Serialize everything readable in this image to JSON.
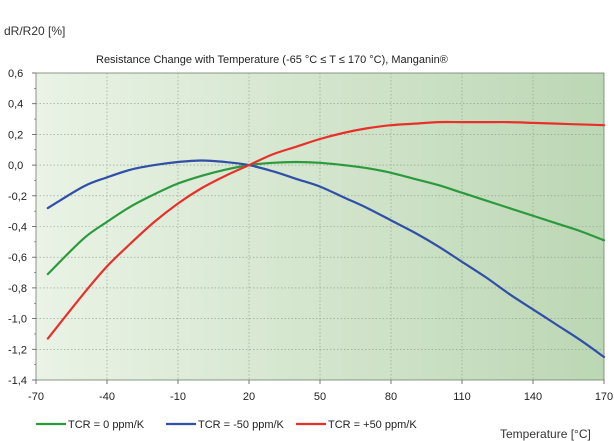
{
  "chart_data": {
    "type": "line",
    "title": "Resistance Change with Temperature (-65 °C ≤ T ≤ 170 °C), Manganin®",
    "ylabel": "dR/R20 [%]",
    "xlabel": "Temperature [°C]",
    "xlim": [
      -70,
      170
    ],
    "ylim": [
      -1.4,
      0.6
    ],
    "x_ticks": [
      -70,
      -40,
      -10,
      20,
      50,
      80,
      110,
      140,
      170
    ],
    "x_tick_labels": [
      "-70",
      "-40",
      "-10",
      "20",
      "50",
      "80",
      "110",
      "140",
      "170"
    ],
    "y_ticks": [
      0.6,
      0.4,
      0.2,
      0.0,
      -0.2,
      -0.4,
      -0.6,
      -0.8,
      -1.0,
      -1.2,
      -1.4
    ],
    "y_tick_labels": [
      "0,6",
      "0,4",
      "0,2",
      "0,0",
      "-0,2",
      "-0,4",
      "-0,6",
      "-0,8",
      "-1,0",
      "-1,2",
      "-1,4"
    ],
    "grid": true,
    "legend_position": "bottom-left",
    "series": [
      {
        "name": "TCR = 0 ppm/K",
        "color": "#2a9a3c",
        "x": [
          -65,
          -50,
          -40,
          -30,
          -20,
          -10,
          0,
          10,
          20,
          30,
          40,
          50,
          60,
          70,
          80,
          90,
          100,
          110,
          120,
          130,
          140,
          150,
          160,
          170
        ],
        "y": [
          -0.71,
          -0.48,
          -0.37,
          -0.27,
          -0.19,
          -0.12,
          -0.07,
          -0.03,
          0.0,
          0.015,
          0.02,
          0.015,
          0.0,
          -0.02,
          -0.05,
          -0.09,
          -0.13,
          -0.18,
          -0.23,
          -0.28,
          -0.33,
          -0.38,
          -0.43,
          -0.49
        ]
      },
      {
        "name": "TCR = -50 ppm/K",
        "color": "#2f4fa8",
        "x": [
          -65,
          -50,
          -40,
          -30,
          -20,
          -10,
          0,
          10,
          20,
          30,
          40,
          50,
          60,
          70,
          80,
          90,
          100,
          110,
          120,
          130,
          140,
          150,
          160,
          170
        ],
        "y": [
          -0.28,
          -0.14,
          -0.08,
          -0.03,
          0.0,
          0.02,
          0.03,
          0.02,
          0.0,
          -0.04,
          -0.09,
          -0.14,
          -0.21,
          -0.28,
          -0.36,
          -0.44,
          -0.53,
          -0.63,
          -0.73,
          -0.84,
          -0.94,
          -1.04,
          -1.14,
          -1.25
        ]
      },
      {
        "name": "TCR = +50 ppm/K",
        "color": "#e8302a",
        "x": [
          -65,
          -50,
          -40,
          -30,
          -20,
          -10,
          0,
          10,
          20,
          30,
          40,
          50,
          60,
          70,
          80,
          90,
          100,
          110,
          120,
          130,
          140,
          150,
          160,
          170
        ],
        "y": [
          -1.13,
          -0.84,
          -0.66,
          -0.51,
          -0.37,
          -0.25,
          -0.15,
          -0.07,
          0.0,
          0.07,
          0.12,
          0.17,
          0.21,
          0.24,
          0.26,
          0.27,
          0.28,
          0.28,
          0.28,
          0.28,
          0.275,
          0.27,
          0.265,
          0.26
        ]
      }
    ]
  }
}
